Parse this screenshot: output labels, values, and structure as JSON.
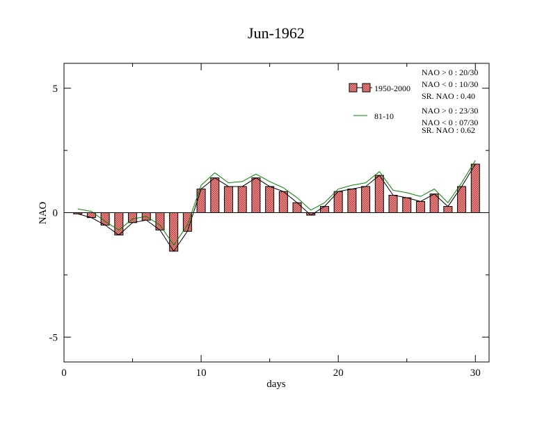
{
  "chart_data": {
    "type": "bar",
    "title": "Jun-1962",
    "xlabel": "days",
    "ylabel": "NAO",
    "xlim": [
      0,
      31
    ],
    "ylim": [
      -6,
      6
    ],
    "x_ticks": [
      0,
      10,
      20,
      30
    ],
    "y_ticks": [
      -5,
      0,
      5
    ],
    "grid": false,
    "legend_position": "top-right",
    "x": [
      1,
      2,
      3,
      4,
      5,
      6,
      7,
      8,
      9,
      10,
      11,
      12,
      13,
      14,
      15,
      16,
      17,
      18,
      19,
      20,
      21,
      22,
      23,
      24,
      25,
      26,
      27,
      28,
      29,
      30
    ],
    "series": [
      {
        "name": "1950-2000",
        "kind": "bar",
        "color": "#f08080",
        "values": [
          -0.05,
          -0.2,
          -0.5,
          -0.9,
          -0.4,
          -0.3,
          -0.7,
          -1.55,
          -0.75,
          0.95,
          1.4,
          1.05,
          1.05,
          1.4,
          1.05,
          0.85,
          0.4,
          -0.1,
          0.25,
          0.85,
          0.95,
          1.05,
          1.5,
          0.7,
          0.6,
          0.45,
          0.75,
          0.25,
          1.05,
          1.95
        ]
      },
      {
        "name": "",
        "kind": "line",
        "color": "#000000",
        "values": [
          -0.05,
          -0.2,
          -0.5,
          -0.9,
          -0.4,
          -0.3,
          -0.7,
          -1.55,
          -0.75,
          0.95,
          1.4,
          1.05,
          1.05,
          1.4,
          1.05,
          0.85,
          0.4,
          -0.1,
          0.25,
          0.85,
          0.95,
          1.05,
          1.5,
          0.7,
          0.6,
          0.45,
          0.75,
          0.25,
          1.05,
          1.95
        ]
      },
      {
        "name": "81-10",
        "kind": "line",
        "color": "#008000",
        "values": [
          0.15,
          0.05,
          -0.35,
          -0.7,
          -0.25,
          -0.15,
          -0.5,
          -1.3,
          -0.5,
          1.1,
          1.6,
          1.2,
          1.25,
          1.55,
          1.25,
          1.0,
          0.6,
          0.1,
          0.4,
          0.95,
          1.1,
          1.2,
          1.65,
          0.9,
          0.8,
          0.65,
          0.95,
          0.4,
          1.2,
          2.1
        ]
      }
    ],
    "legend": {
      "bar_label": "1950-2000",
      "line_label": "81-10"
    },
    "stats": {
      "set1": [
        "NAO > 0 : 20/30",
        "NAO < 0 : 10/30",
        "SR. NAO :  0.40"
      ],
      "set2": [
        "NAO > 0 : 23/30",
        "NAO < 0 : 07/30",
        "SR. NAO :  0.62"
      ]
    }
  }
}
